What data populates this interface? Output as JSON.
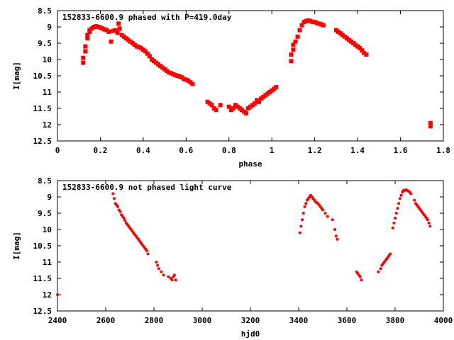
{
  "colors": {
    "points": "#ff0000",
    "axes": "#000000",
    "background": "#ffffff"
  },
  "chart_data": [
    {
      "type": "scatter",
      "title": "152833-6600.9 phased with P=419.0day",
      "xlabel": "phase",
      "ylabel": "I[mag]",
      "xlim": [
        0,
        1.8
      ],
      "ylim": [
        12.5,
        8.5
      ],
      "y_inverted": true,
      "xticks": [
        "0",
        "0.2",
        "0.4",
        "0.6",
        "0.8",
        "1",
        "1.2",
        "1.4",
        "1.6",
        "1.8"
      ],
      "yticks": [
        "8.5",
        "9",
        "9.5",
        "10",
        "10.5",
        "11",
        "11.5",
        "12",
        "12.5"
      ],
      "grid": false,
      "marker": "square",
      "series": [
        {
          "x": [
            0.12,
            0.12,
            0.13,
            0.13,
            0.14,
            0.14,
            0.15,
            0.15,
            0.16,
            0.17,
            0.18,
            0.19,
            0.2,
            0.21,
            0.22,
            0.23,
            0.24,
            0.25,
            0.26,
            0.27,
            0.28,
            0.285,
            0.29,
            0.3,
            0.31,
            0.32,
            0.33,
            0.34,
            0.35,
            0.36,
            0.37,
            0.38,
            0.39,
            0.4,
            0.41,
            0.42,
            0.43,
            0.44,
            0.45,
            0.46,
            0.47,
            0.48,
            0.49,
            0.5,
            0.51,
            0.52,
            0.53,
            0.54,
            0.55,
            0.56,
            0.57,
            0.58,
            0.59,
            0.6,
            0.61,
            0.62,
            0.63,
            0.7,
            0.71,
            0.72,
            0.73,
            0.74,
            0.76,
            0.8,
            0.81,
            0.82,
            0.83,
            0.84,
            0.85,
            0.86,
            0.87,
            0.88,
            0.89,
            0.9,
            0.91,
            0.92,
            0.93,
            0.94,
            0.95,
            0.96,
            0.97,
            0.98,
            0.99,
            1.0,
            1.01,
            1.02,
            1.09,
            1.09,
            1.1,
            1.1,
            1.11,
            1.12,
            1.13,
            1.14,
            1.15,
            1.16,
            1.17,
            1.18,
            1.19,
            1.2,
            1.21,
            1.22,
            1.23,
            1.24,
            1.3,
            1.31,
            1.32,
            1.33,
            1.34,
            1.35,
            1.36,
            1.37,
            1.38,
            1.39,
            1.4,
            1.41,
            1.42,
            1.43,
            1.44,
            1.74,
            1.74
          ],
          "y": [
            10.1,
            9.95,
            9.75,
            9.6,
            9.35,
            9.25,
            9.15,
            9.1,
            9.05,
            9.0,
            8.98,
            9.0,
            9.02,
            9.05,
            9.08,
            9.1,
            9.15,
            9.45,
            9.12,
            9.1,
            9.18,
            8.9,
            9.05,
            9.25,
            9.3,
            9.35,
            9.4,
            9.45,
            9.5,
            9.55,
            9.6,
            9.62,
            9.65,
            9.7,
            9.75,
            9.82,
            9.9,
            10.0,
            10.05,
            10.1,
            10.15,
            10.2,
            10.25,
            10.3,
            10.35,
            10.4,
            10.42,
            10.45,
            10.48,
            10.5,
            10.52,
            10.55,
            10.6,
            10.62,
            10.65,
            10.7,
            10.75,
            11.3,
            11.35,
            11.4,
            11.5,
            11.55,
            11.4,
            11.45,
            11.55,
            11.5,
            11.4,
            11.45,
            11.5,
            11.55,
            11.6,
            11.65,
            11.5,
            11.45,
            11.4,
            11.35,
            11.25,
            11.3,
            11.2,
            11.15,
            11.1,
            11.05,
            11.0,
            10.95,
            10.9,
            10.85,
            10.05,
            9.85,
            9.7,
            9.55,
            9.45,
            9.3,
            9.1,
            8.95,
            8.85,
            8.82,
            8.8,
            8.82,
            8.85,
            8.85,
            8.88,
            8.9,
            8.92,
            8.95,
            9.1,
            9.15,
            9.2,
            9.25,
            9.3,
            9.35,
            9.4,
            9.45,
            9.5,
            9.55,
            9.6,
            9.65,
            9.72,
            9.8,
            9.85,
            11.95,
            12.05
          ]
        }
      ]
    },
    {
      "type": "scatter",
      "title": "152833-6600.9 not phased light curve",
      "xlabel": "hjd0",
      "ylabel": "I[mag]",
      "xlim": [
        2400,
        4000
      ],
      "ylim": [
        12.5,
        8.5
      ],
      "y_inverted": true,
      "xticks": [
        "2400",
        "2600",
        "2800",
        "3000",
        "3200",
        "3400",
        "3600",
        "3800",
        "4000"
      ],
      "yticks": [
        "8.5",
        "9",
        "9.5",
        "10",
        "10.5",
        "11",
        "11.5",
        "12",
        "12.5"
      ],
      "grid": false,
      "marker": "dot",
      "series": [
        {
          "x": [
            2400,
            2630,
            2635,
            2640,
            2645,
            2650,
            2655,
            2660,
            2665,
            2670,
            2675,
            2680,
            2685,
            2690,
            2695,
            2700,
            2705,
            2710,
            2715,
            2720,
            2725,
            2730,
            2735,
            2740,
            2745,
            2750,
            2755,
            2760,
            2765,
            2770,
            2775,
            2810,
            2815,
            2820,
            2830,
            2840,
            2860,
            2870,
            2875,
            2880,
            2885,
            2890,
            3405,
            3410,
            3415,
            3420,
            3425,
            3430,
            3435,
            3440,
            3445,
            3450,
            3455,
            3460,
            3465,
            3470,
            3475,
            3480,
            3485,
            3490,
            3495,
            3500,
            3510,
            3520,
            3540,
            3550,
            3555,
            3560,
            3640,
            3645,
            3650,
            3655,
            3660,
            3730,
            3740,
            3745,
            3750,
            3755,
            3760,
            3765,
            3770,
            3775,
            3780,
            3790,
            3795,
            3800,
            3805,
            3810,
            3815,
            3820,
            3825,
            3830,
            3835,
            3840,
            3845,
            3850,
            3855,
            3860,
            3865,
            3880,
            3885,
            3890,
            3895,
            3900,
            3905,
            3910,
            3915,
            3920,
            3925,
            3930,
            3935,
            3940,
            3945
          ],
          "y": [
            12.0,
            8.9,
            9.05,
            9.2,
            9.25,
            9.3,
            9.4,
            9.45,
            9.55,
            9.6,
            9.65,
            9.72,
            9.8,
            9.85,
            9.9,
            9.95,
            10.0,
            10.05,
            10.1,
            10.15,
            10.2,
            10.25,
            10.3,
            10.35,
            10.4,
            10.45,
            10.5,
            10.55,
            10.6,
            10.65,
            10.75,
            11.0,
            11.1,
            11.2,
            11.3,
            11.4,
            11.45,
            11.5,
            11.55,
            11.45,
            11.4,
            11.55,
            10.1,
            9.9,
            9.7,
            9.5,
            9.3,
            9.2,
            9.1,
            9.05,
            9.0,
            8.95,
            9.0,
            9.05,
            9.1,
            9.15,
            9.18,
            9.2,
            9.25,
            9.3,
            9.35,
            9.4,
            9.5,
            9.6,
            9.7,
            10.0,
            10.2,
            10.3,
            11.3,
            11.35,
            11.4,
            11.45,
            11.55,
            11.3,
            11.2,
            11.1,
            11.05,
            11.0,
            10.95,
            10.9,
            10.85,
            10.8,
            10.75,
            9.95,
            9.8,
            9.65,
            9.5,
            9.35,
            9.2,
            9.05,
            8.95,
            8.85,
            8.8,
            8.8,
            8.78,
            8.8,
            8.82,
            8.85,
            8.9,
            9.1,
            9.2,
            9.25,
            9.3,
            9.35,
            9.4,
            9.45,
            9.5,
            9.55,
            9.6,
            9.65,
            9.7,
            9.8,
            9.9
          ]
        }
      ]
    }
  ]
}
